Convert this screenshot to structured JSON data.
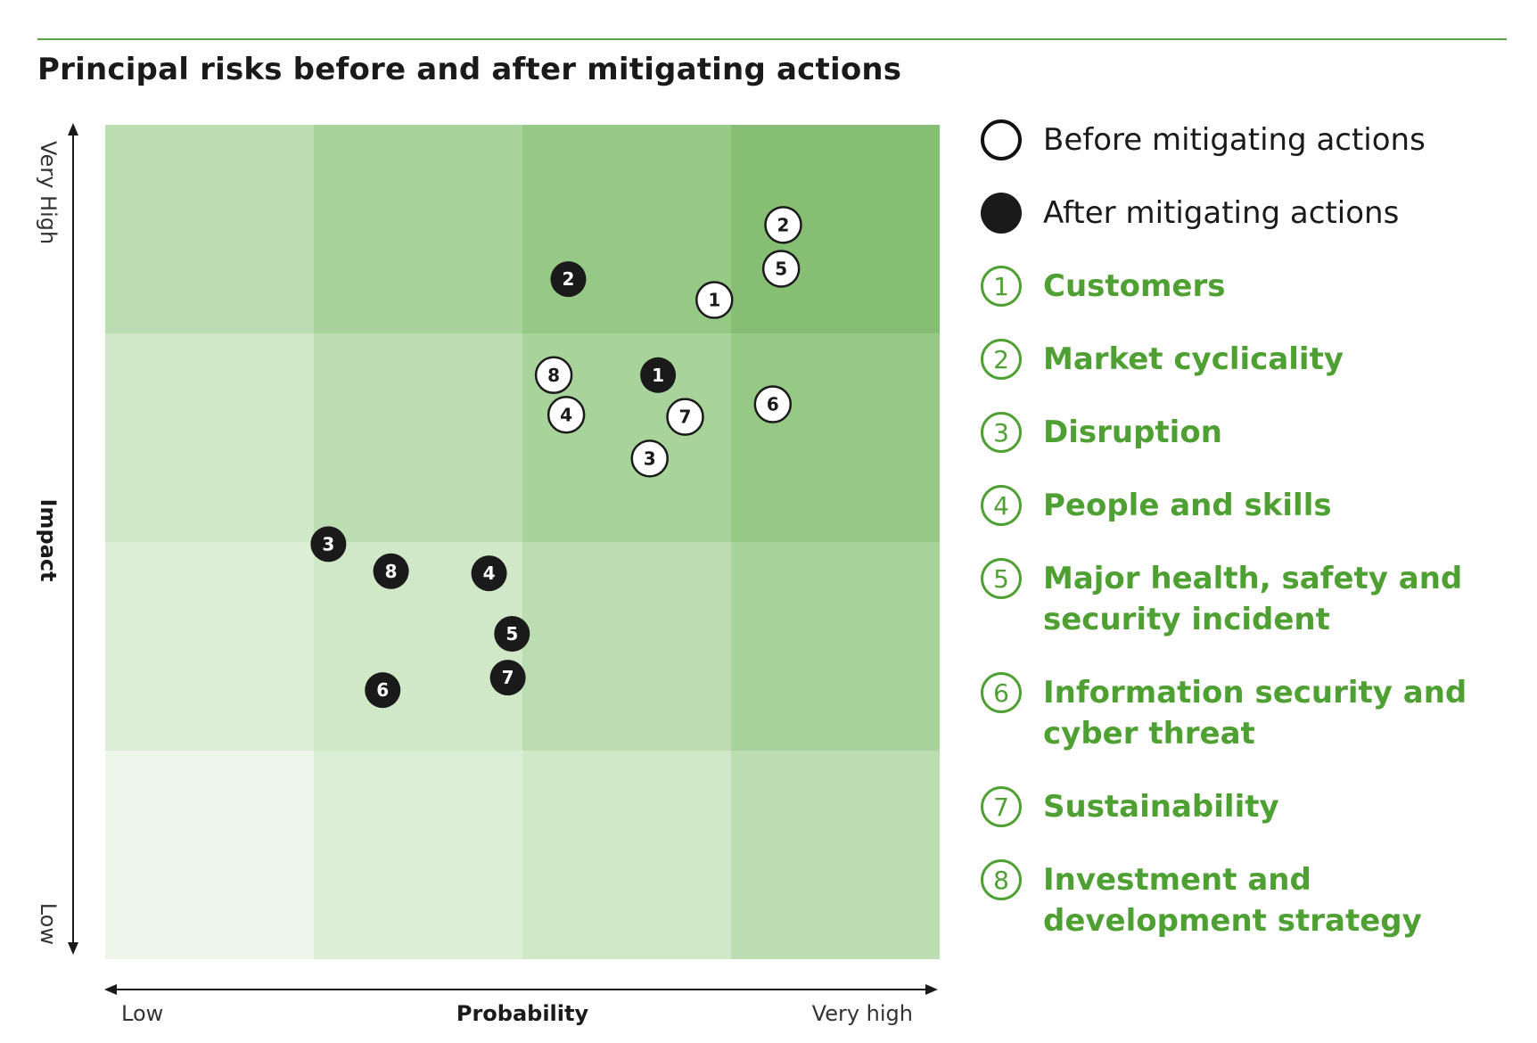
{
  "title": "Principal risks before and after mitigating actions",
  "colors": {
    "rule": "#5aa542",
    "risk_text": "#4fa033",
    "before_fill": "#ffffff",
    "after_fill": "#1a1a1a",
    "grid_shades": [
      [
        "#bcdcb2",
        "#a8d39a",
        "#96c985",
        "#86bf74"
      ],
      [
        "#d0e7c8",
        "#bcdcb2",
        "#a8d39a",
        "#96c985"
      ],
      [
        "#ddeed7",
        "#d0e7c8",
        "#bcdcb2",
        "#a8d39a"
      ],
      [
        "#ecf5e8",
        "#ddeed7",
        "#d0e7c8",
        "#bcdcb2"
      ]
    ]
  },
  "legend": {
    "before": "Before mitigating actions",
    "after": "After mitigating actions",
    "risks": [
      {
        "id": "1",
        "label": "Customers"
      },
      {
        "id": "2",
        "label": "Market cyclicality"
      },
      {
        "id": "3",
        "label": "Disruption"
      },
      {
        "id": "4",
        "label": "People and skills"
      },
      {
        "id": "5",
        "label": "Major health, safety and security incident"
      },
      {
        "id": "6",
        "label": "Information security and cyber threat"
      },
      {
        "id": "7",
        "label": "Sustainability"
      },
      {
        "id": "8",
        "label": "Investment and development strategy"
      }
    ]
  },
  "chart_data": {
    "type": "scatter",
    "xlabel": "Probability",
    "ylabel": "Impact",
    "x_tick_low": "Low",
    "x_tick_high": "Very high",
    "y_tick_low": "Low",
    "y_tick_high": "Very High",
    "xlim": [
      0,
      4
    ],
    "ylim": [
      0,
      4
    ],
    "grid": "4x4",
    "legend_position": "right",
    "series": [
      {
        "name": "Before mitigating actions",
        "points": [
          {
            "id": "1",
            "x": 2.92,
            "y": 3.16
          },
          {
            "id": "2",
            "x": 3.25,
            "y": 3.52
          },
          {
            "id": "3",
            "x": 2.61,
            "y": 2.4
          },
          {
            "id": "4",
            "x": 2.21,
            "y": 2.61
          },
          {
            "id": "5",
            "x": 3.24,
            "y": 3.31
          },
          {
            "id": "6",
            "x": 3.2,
            "y": 2.66
          },
          {
            "id": "7",
            "x": 2.78,
            "y": 2.6
          },
          {
            "id": "8",
            "x": 2.15,
            "y": 2.8
          }
        ]
      },
      {
        "name": "After mitigating actions",
        "points": [
          {
            "id": "1",
            "x": 2.65,
            "y": 2.8
          },
          {
            "id": "2",
            "x": 2.22,
            "y": 3.26
          },
          {
            "id": "3",
            "x": 1.07,
            "y": 1.99
          },
          {
            "id": "4",
            "x": 1.84,
            "y": 1.85
          },
          {
            "id": "5",
            "x": 1.95,
            "y": 1.56
          },
          {
            "id": "6",
            "x": 1.33,
            "y": 1.29
          },
          {
            "id": "7",
            "x": 1.93,
            "y": 1.35
          },
          {
            "id": "8",
            "x": 1.37,
            "y": 1.86
          }
        ]
      }
    ]
  }
}
